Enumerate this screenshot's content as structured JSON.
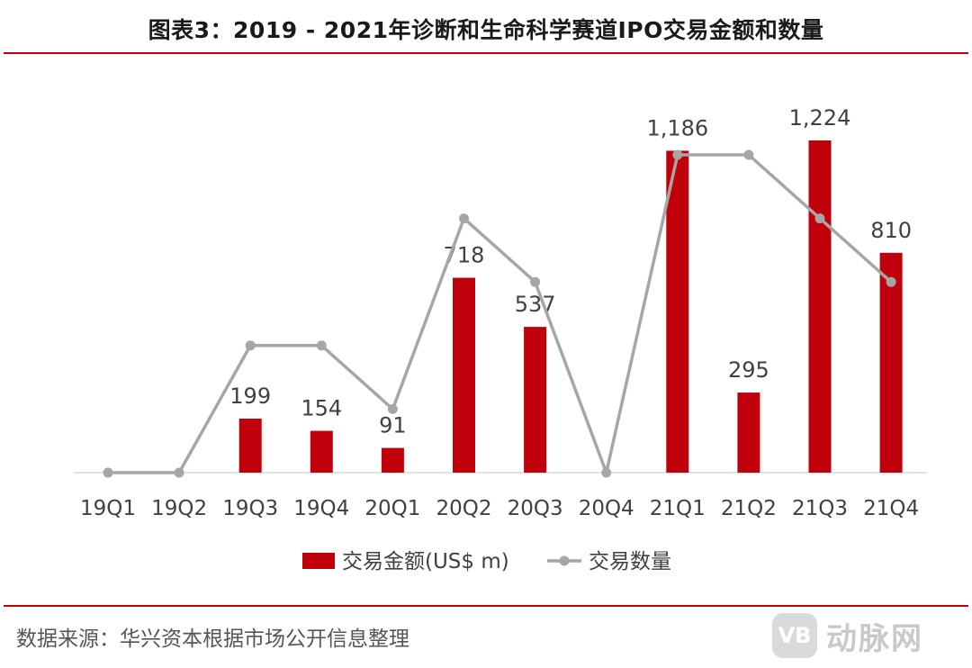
{
  "title": "图表3：2019 - 2021年诊断和生命科学赛道IPO交易金额和数量",
  "source": "数据来源：华兴资本根据市场公开信息整理",
  "watermark": {
    "logo_text": "VB",
    "text": "动脉网"
  },
  "colors": {
    "bar": "#c0000a",
    "line": "#a6a6a6",
    "axis": "#d9d9d9",
    "label": "#404040",
    "rule": "#c0000a"
  },
  "chart_data": {
    "type": "bar",
    "title": "图表3：2019 - 2021年诊断和生命科学赛道IPO交易金额和数量",
    "categories": [
      "19Q1",
      "19Q2",
      "19Q3",
      "19Q4",
      "20Q1",
      "20Q2",
      "20Q3",
      "20Q4",
      "21Q1",
      "21Q2",
      "21Q3",
      "21Q4"
    ],
    "series": [
      {
        "name": "交易金额(US$ m)",
        "kind": "bar",
        "values": [
          0,
          0,
          199,
          154,
          91,
          718,
          537,
          0,
          1186,
          295,
          1224,
          810
        ],
        "labels": [
          "",
          "",
          "199",
          "154",
          "91",
          "718",
          "537",
          "",
          "1,186",
          "295",
          "1,224",
          "810"
        ]
      },
      {
        "name": "交易数量",
        "kind": "line",
        "values": [
          0,
          0,
          4,
          4,
          2,
          8,
          6,
          0,
          10,
          10,
          8,
          6
        ]
      }
    ],
    "ylim": [
      0,
      1224
    ],
    "y2lim": [
      0,
      10
    ],
    "xlabel": "",
    "ylabel": "",
    "legend": "bottom-center",
    "grid": false
  }
}
